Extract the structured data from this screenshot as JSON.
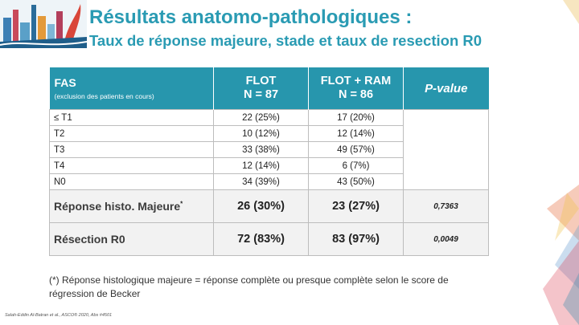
{
  "colors": {
    "accent": "#2a9bb3",
    "header_bg": "#2796ad",
    "red": "#b01f23",
    "green": "#27a33a"
  },
  "slide": {
    "title": "Résultats anatomo-pathologiques :",
    "subtitle": "Taux de réponse majeure, stade et taux de resection R0"
  },
  "table": {
    "header": {
      "fas": "FAS",
      "fas_sub": "(exclusion des patients en cours)",
      "flot_line1": "FLOT",
      "flot_line2": "N = 87",
      "ram_line1": "FLOT + RAM",
      "ram_line2": "N = 86",
      "pvalue": "P-value"
    },
    "rows": [
      {
        "label": "≤ T1",
        "flot": "22 (25%)",
        "ram": "17 (20%)"
      },
      {
        "label": "T2",
        "flot": "10 (12%)",
        "ram": "12 (14%)"
      },
      {
        "label": "T3",
        "flot": "33 (38%)",
        "ram": "49 (57%)"
      },
      {
        "label": "T4",
        "flot": "12 (14%)",
        "ram": "6 (7%)"
      },
      {
        "label": "N0",
        "flot": "34 (39%)",
        "ram": "43 (50%)"
      }
    ],
    "response": {
      "label": "Réponse histo. Majeure",
      "star": "*",
      "flot": "26 (30%)",
      "ram": "23 (27%)",
      "pvalue": "0,7363"
    },
    "resection": {
      "label": "Résection R0",
      "flot": "72 (83%)",
      "ram": "83 (97%)",
      "pvalue": "0,0049"
    }
  },
  "footnote": "(*) Réponse histologique majeure = réponse complète ou presque complète selon le score de régression de Becker",
  "citation": "Salah-Eddin Al-Batran et al., ASCO® 2020, Abs #4501",
  "icons": {
    "logo": "city-skyline-logo-icon",
    "decoration": "abstract-colorful-shapes-icon"
  }
}
